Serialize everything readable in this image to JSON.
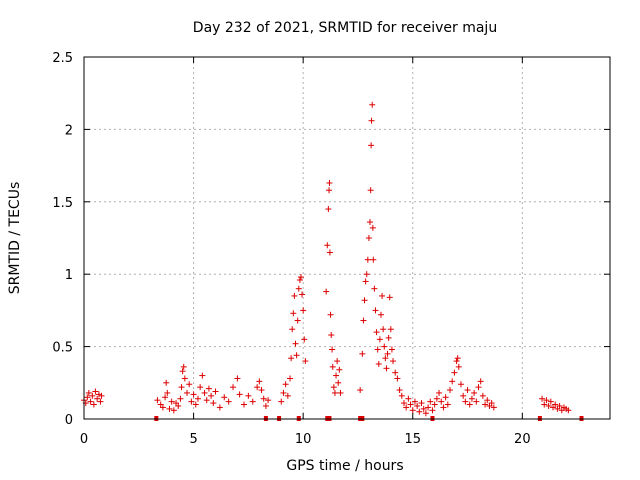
{
  "chart_data": {
    "type": "scatter",
    "title": "Day 232 of 2021, SRMTID for receiver maju",
    "xlabel": "GPS time / hours",
    "ylabel": "SRMTID / TECUs",
    "xlim": [
      0,
      24
    ],
    "ylim": [
      0,
      2.5
    ],
    "xticks": [
      0,
      5,
      10,
      15,
      20
    ],
    "xtick_labels": [
      "0",
      "5",
      "10",
      "15",
      "20"
    ],
    "yticks": [
      0,
      0.5,
      1,
      1.5,
      2,
      2.5
    ],
    "ytick_labels": [
      "0",
      "0.5",
      "1",
      "1.5",
      "2",
      "2.5"
    ],
    "grid": true,
    "marker": "+",
    "color": "#dd0000",
    "series": [
      {
        "name": "SRMTID",
        "points": [
          [
            0.0,
            0.13
          ],
          [
            0.08,
            0.11
          ],
          [
            0.15,
            0.15
          ],
          [
            0.22,
            0.18
          ],
          [
            0.3,
            0.12
          ],
          [
            0.38,
            0.16
          ],
          [
            0.45,
            0.1
          ],
          [
            0.52,
            0.19
          ],
          [
            0.6,
            0.14
          ],
          [
            0.68,
            0.17
          ],
          [
            0.75,
            0.12
          ],
          [
            0.8,
            0.16
          ],
          [
            3.35,
            0.13
          ],
          [
            3.5,
            0.1
          ],
          [
            3.6,
            0.08
          ],
          [
            3.7,
            0.15
          ],
          [
            3.75,
            0.25
          ],
          [
            3.8,
            0.18
          ],
          [
            3.9,
            0.07
          ],
          [
            4.0,
            0.12
          ],
          [
            4.1,
            0.06
          ],
          [
            4.2,
            0.11
          ],
          [
            4.3,
            0.09
          ],
          [
            4.4,
            0.14
          ],
          [
            4.45,
            0.22
          ],
          [
            4.5,
            0.33
          ],
          [
            4.55,
            0.36
          ],
          [
            4.6,
            0.28
          ],
          [
            4.7,
            0.18
          ],
          [
            4.8,
            0.24
          ],
          [
            4.9,
            0.12
          ],
          [
            5.0,
            0.17
          ],
          [
            5.1,
            0.1
          ],
          [
            5.2,
            0.14
          ],
          [
            5.3,
            0.22
          ],
          [
            5.4,
            0.3
          ],
          [
            5.5,
            0.18
          ],
          [
            5.6,
            0.13
          ],
          [
            5.7,
            0.21
          ],
          [
            5.8,
            0.16
          ],
          [
            5.9,
            0.11
          ],
          [
            6.0,
            0.19
          ],
          [
            6.2,
            0.08
          ],
          [
            6.4,
            0.15
          ],
          [
            6.6,
            0.12
          ],
          [
            6.8,
            0.22
          ],
          [
            7.0,
            0.28
          ],
          [
            7.1,
            0.17
          ],
          [
            7.3,
            0.1
          ],
          [
            7.5,
            0.16
          ],
          [
            7.7,
            0.12
          ],
          [
            7.9,
            0.22
          ],
          [
            8.0,
            0.26
          ],
          [
            8.1,
            0.2
          ],
          [
            8.2,
            0.14
          ],
          [
            8.3,
            0.09
          ],
          [
            8.4,
            0.13
          ],
          [
            9.0,
            0.12
          ],
          [
            9.1,
            0.18
          ],
          [
            9.2,
            0.24
          ],
          [
            9.3,
            0.16
          ],
          [
            9.4,
            0.28
          ],
          [
            9.45,
            0.42
          ],
          [
            9.5,
            0.62
          ],
          [
            9.55,
            0.73
          ],
          [
            9.6,
            0.85
          ],
          [
            9.65,
            0.52
          ],
          [
            9.7,
            0.44
          ],
          [
            9.75,
            0.68
          ],
          [
            9.8,
            0.9
          ],
          [
            9.85,
            0.96
          ],
          [
            9.9,
            0.98
          ],
          [
            9.95,
            0.86
          ],
          [
            10.0,
            0.75
          ],
          [
            10.05,
            0.55
          ],
          [
            10.1,
            0.4
          ],
          [
            11.05,
            0.88
          ],
          [
            11.1,
            1.2
          ],
          [
            11.15,
            1.45
          ],
          [
            11.18,
            1.58
          ],
          [
            11.2,
            1.63
          ],
          [
            11.22,
            1.15
          ],
          [
            11.25,
            0.72
          ],
          [
            11.28,
            0.58
          ],
          [
            11.32,
            0.48
          ],
          [
            11.35,
            0.36
          ],
          [
            11.4,
            0.22
          ],
          [
            11.45,
            0.18
          ],
          [
            11.5,
            0.3
          ],
          [
            11.55,
            0.4
          ],
          [
            11.6,
            0.25
          ],
          [
            11.65,
            0.34
          ],
          [
            11.7,
            0.18
          ],
          [
            12.6,
            0.2
          ],
          [
            12.7,
            0.45
          ],
          [
            12.75,
            0.68
          ],
          [
            12.8,
            0.82
          ],
          [
            12.85,
            0.95
          ],
          [
            12.9,
            1.0
          ],
          [
            12.95,
            1.1
          ],
          [
            13.0,
            1.25
          ],
          [
            13.05,
            1.36
          ],
          [
            13.08,
            1.58
          ],
          [
            13.1,
            1.89
          ],
          [
            13.12,
            2.06
          ],
          [
            13.15,
            2.17
          ],
          [
            13.18,
            1.32
          ],
          [
            13.2,
            1.1
          ],
          [
            13.25,
            0.9
          ],
          [
            13.3,
            0.75
          ],
          [
            13.35,
            0.6
          ],
          [
            13.4,
            0.48
          ],
          [
            13.45,
            0.38
          ],
          [
            13.5,
            0.55
          ],
          [
            13.55,
            0.72
          ],
          [
            13.6,
            0.85
          ],
          [
            13.65,
            0.62
          ],
          [
            13.7,
            0.5
          ],
          [
            13.75,
            0.42
          ],
          [
            13.8,
            0.35
          ],
          [
            13.85,
            0.45
          ],
          [
            13.9,
            0.56
          ],
          [
            13.95,
            0.84
          ],
          [
            14.0,
            0.62
          ],
          [
            14.05,
            0.48
          ],
          [
            14.1,
            0.4
          ],
          [
            14.2,
            0.32
          ],
          [
            14.3,
            0.28
          ],
          [
            14.4,
            0.2
          ],
          [
            14.5,
            0.16
          ],
          [
            14.6,
            0.11
          ],
          [
            14.7,
            0.08
          ],
          [
            14.8,
            0.14
          ],
          [
            14.9,
            0.1
          ],
          [
            15.0,
            0.06
          ],
          [
            15.1,
            0.12
          ],
          [
            15.2,
            0.09
          ],
          [
            15.3,
            0.05
          ],
          [
            15.4,
            0.11
          ],
          [
            15.5,
            0.07
          ],
          [
            15.6,
            0.04
          ],
          [
            15.7,
            0.08
          ],
          [
            15.8,
            0.12
          ],
          [
            15.9,
            0.06
          ],
          [
            16.0,
            0.1
          ],
          [
            16.1,
            0.14
          ],
          [
            16.2,
            0.18
          ],
          [
            16.3,
            0.12
          ],
          [
            16.4,
            0.08
          ],
          [
            16.5,
            0.15
          ],
          [
            16.6,
            0.1
          ],
          [
            16.7,
            0.2
          ],
          [
            16.8,
            0.26
          ],
          [
            16.9,
            0.32
          ],
          [
            17.0,
            0.4
          ],
          [
            17.05,
            0.42
          ],
          [
            17.1,
            0.36
          ],
          [
            17.2,
            0.24
          ],
          [
            17.3,
            0.16
          ],
          [
            17.4,
            0.12
          ],
          [
            17.5,
            0.2
          ],
          [
            17.6,
            0.1
          ],
          [
            17.7,
            0.14
          ],
          [
            17.8,
            0.18
          ],
          [
            17.9,
            0.12
          ],
          [
            18.0,
            0.22
          ],
          [
            18.1,
            0.26
          ],
          [
            18.2,
            0.16
          ],
          [
            18.3,
            0.1
          ],
          [
            18.4,
            0.13
          ],
          [
            18.5,
            0.09
          ],
          [
            18.6,
            0.11
          ],
          [
            18.7,
            0.08
          ],
          [
            20.9,
            0.14
          ],
          [
            21.0,
            0.1
          ],
          [
            21.1,
            0.13
          ],
          [
            21.2,
            0.09
          ],
          [
            21.3,
            0.12
          ],
          [
            21.4,
            0.08
          ],
          [
            21.5,
            0.1
          ],
          [
            21.6,
            0.07
          ],
          [
            21.7,
            0.09
          ],
          [
            21.8,
            0.06
          ],
          [
            21.9,
            0.08
          ],
          [
            22.0,
            0.07
          ],
          [
            22.1,
            0.06
          ]
        ]
      }
    ],
    "gap_markers": {
      "y": 0,
      "x": [
        3.3,
        8.3,
        8.9,
        9.8,
        11.1,
        11.2,
        12.6,
        12.7,
        15.9,
        20.8,
        22.7
      ]
    }
  }
}
